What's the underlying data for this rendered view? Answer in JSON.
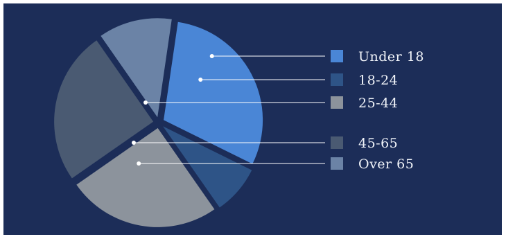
{
  "chart_data": {
    "type": "pie",
    "title": "",
    "legend_position": "right",
    "slices": [
      {
        "label": "Under 18",
        "value": 30,
        "color": "#4a86d6"
      },
      {
        "label": "18-24",
        "value": 8,
        "color": "#2e5487"
      },
      {
        "label": "25-44",
        "value": 25,
        "color": "#8c939c"
      },
      {
        "label": "45-65",
        "value": 25,
        "color": "#4a5a72"
      },
      {
        "label": "Over 65",
        "value": 12,
        "color": "#6b83a6"
      }
    ]
  },
  "colors": {
    "background": "#1c2d58",
    "leader_line": "#ffffff"
  }
}
